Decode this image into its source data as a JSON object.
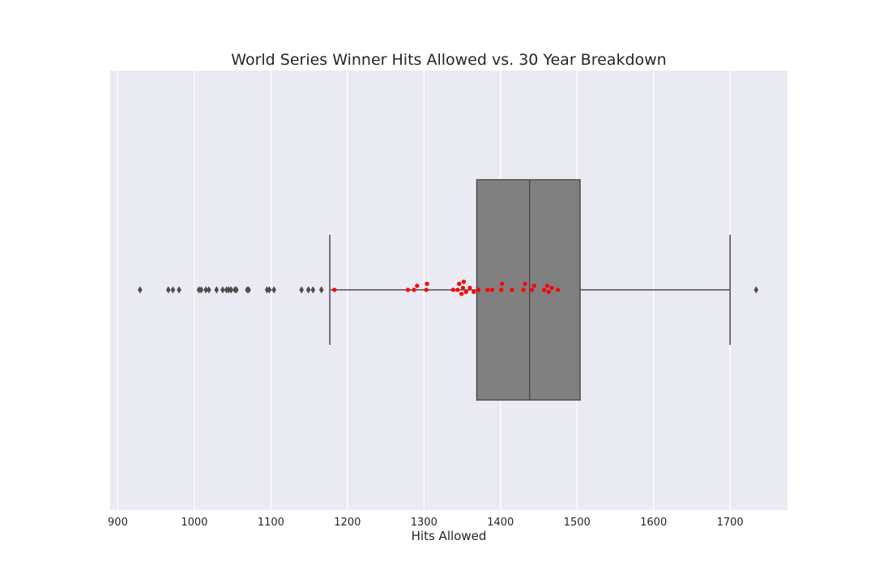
{
  "chart_data": {
    "type": "boxplot",
    "title": "World Series Winner Hits Allowed vs. 30 Year Breakdown",
    "xlabel": "Hits Allowed",
    "ylabel": "",
    "xlim": [
      890,
      1775
    ],
    "x_ticks": [
      900,
      1000,
      1100,
      1200,
      1300,
      1400,
      1500,
      1600,
      1700
    ],
    "grid": true,
    "background_color": "#eaeaf2",
    "box": {
      "name": "",
      "q1": 1369,
      "median": 1438,
      "q3": 1504,
      "whisker_low": 1177,
      "whisker_high": 1700,
      "color": "#808080",
      "line_color": "#4d4d4d",
      "outliers": [
        929,
        966,
        972,
        980,
        1006,
        1009,
        1015,
        1019,
        1029,
        1037,
        1042,
        1045,
        1048,
        1053,
        1055,
        1069,
        1071,
        1095,
        1098,
        1104,
        1140,
        1149,
        1155,
        1166,
        1734
      ]
    },
    "points": {
      "name": "World Series Winners",
      "color": "#ff0000",
      "values": [
        1183,
        1279,
        1287,
        1291,
        1303,
        1304,
        1338,
        1344,
        1346,
        1349,
        1351,
        1352,
        1355,
        1360,
        1365,
        1371,
        1383,
        1389,
        1401,
        1402,
        1415,
        1430,
        1432,
        1441,
        1444,
        1457,
        1461,
        1463,
        1467,
        1475
      ]
    }
  }
}
